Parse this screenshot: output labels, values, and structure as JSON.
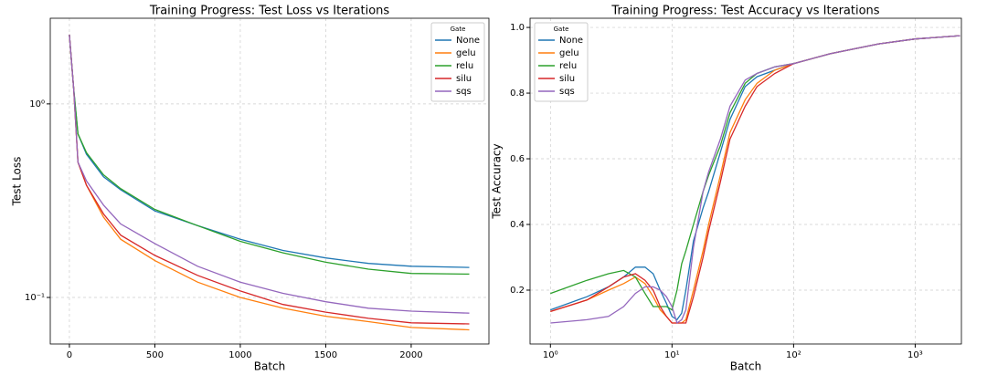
{
  "chart_data": [
    {
      "type": "line",
      "title": "Training Progress: Test Loss vs Iterations",
      "xlabel": "Batch",
      "ylabel": "Test Loss",
      "x": [
        0,
        25,
        50,
        100,
        200,
        300,
        500,
        750,
        1000,
        1250,
        1500,
        1750,
        2000,
        2340
      ],
      "series": [
        {
          "name": "None",
          "color": "#1f77b4",
          "values": [
            2.28,
            1.2,
            0.7,
            0.55,
            0.42,
            0.36,
            0.28,
            0.235,
            0.2,
            0.175,
            0.16,
            0.15,
            0.145,
            0.143
          ]
        },
        {
          "name": "gelu",
          "color": "#ff7f0e",
          "values": [
            2.28,
            1.2,
            0.5,
            0.38,
            0.26,
            0.2,
            0.155,
            0.12,
            0.1,
            0.088,
            0.08,
            0.075,
            0.07,
            0.068
          ]
        },
        {
          "name": "relu",
          "color": "#2ca02c",
          "values": [
            2.28,
            1.2,
            0.7,
            0.56,
            0.43,
            0.365,
            0.285,
            0.235,
            0.195,
            0.17,
            0.152,
            0.14,
            0.133,
            0.132
          ]
        },
        {
          "name": "silu",
          "color": "#d62728",
          "values": [
            2.28,
            1.2,
            0.5,
            0.38,
            0.27,
            0.21,
            0.165,
            0.13,
            0.108,
            0.092,
            0.084,
            0.078,
            0.074,
            0.073
          ]
        },
        {
          "name": "sqs",
          "color": "#9467bd",
          "values": [
            2.28,
            1.2,
            0.5,
            0.4,
            0.3,
            0.24,
            0.19,
            0.145,
            0.12,
            0.105,
            0.095,
            0.088,
            0.085,
            0.083
          ]
        }
      ],
      "xlim": [
        -112,
        2455
      ],
      "xticks": [
        0,
        500,
        1000,
        1500,
        2000
      ],
      "ylim": [
        0.0575,
        2.77
      ],
      "ylog": true,
      "yticks": [
        {
          "value": 0.1,
          "label": "10⁻¹"
        },
        {
          "value": 1,
          "label": "10⁰"
        }
      ],
      "grid": true,
      "legend_title": "Gate",
      "legend": "upper right"
    },
    {
      "type": "line",
      "title": "Training Progress: Test Accuracy vs Iterations",
      "xlabel": "Batch",
      "ylabel": "Test Accuracy",
      "x": [
        1,
        2,
        3,
        4,
        5,
        6,
        7,
        8,
        9,
        10,
        11,
        12,
        13,
        15,
        18,
        20,
        25,
        30,
        40,
        50,
        70,
        100,
        200,
        500,
        1000,
        2340
      ],
      "series": [
        {
          "name": "None",
          "color": "#1f77b4",
          "values": [
            0.14,
            0.18,
            0.21,
            0.24,
            0.27,
            0.27,
            0.25,
            0.2,
            0.16,
            0.12,
            0.11,
            0.13,
            0.2,
            0.35,
            0.45,
            0.5,
            0.62,
            0.72,
            0.82,
            0.85,
            0.87,
            0.89,
            0.92,
            0.95,
            0.965,
            0.975
          ]
        },
        {
          "name": "gelu",
          "color": "#ff7f0e",
          "values": [
            0.135,
            0.17,
            0.2,
            0.22,
            0.24,
            0.22,
            0.18,
            0.14,
            0.12,
            0.1,
            0.1,
            0.1,
            0.11,
            0.2,
            0.32,
            0.4,
            0.55,
            0.68,
            0.78,
            0.83,
            0.87,
            0.89,
            0.92,
            0.95,
            0.965,
            0.975
          ]
        },
        {
          "name": "relu",
          "color": "#2ca02c",
          "values": [
            0.19,
            0.23,
            0.25,
            0.26,
            0.24,
            0.19,
            0.15,
            0.15,
            0.15,
            0.14,
            0.2,
            0.28,
            0.32,
            0.4,
            0.5,
            0.55,
            0.64,
            0.74,
            0.83,
            0.86,
            0.88,
            0.89,
            0.92,
            0.95,
            0.965,
            0.975
          ]
        },
        {
          "name": "silu",
          "color": "#d62728",
          "values": [
            0.135,
            0.17,
            0.21,
            0.24,
            0.25,
            0.23,
            0.2,
            0.15,
            0.12,
            0.1,
            0.1,
            0.1,
            0.1,
            0.18,
            0.3,
            0.38,
            0.53,
            0.66,
            0.76,
            0.82,
            0.86,
            0.89,
            0.92,
            0.95,
            0.965,
            0.975
          ]
        },
        {
          "name": "sqs",
          "color": "#9467bd",
          "values": [
            0.1,
            0.11,
            0.12,
            0.15,
            0.19,
            0.21,
            0.21,
            0.2,
            0.18,
            0.15,
            0.1,
            0.11,
            0.14,
            0.33,
            0.5,
            0.56,
            0.66,
            0.76,
            0.84,
            0.86,
            0.88,
            0.89,
            0.92,
            0.95,
            0.965,
            0.975
          ]
        }
      ],
      "xlim": [
        0.68,
        2400
      ],
      "xlog": true,
      "xticks": [
        {
          "value": 1,
          "label": "10⁰"
        },
        {
          "value": 10,
          "label": "10¹"
        },
        {
          "value": 100,
          "label": "10²"
        },
        {
          "value": 1000,
          "label": "10³"
        }
      ],
      "ylim": [
        0.036,
        1.028
      ],
      "yticks": [
        0.2,
        0.4,
        0.6,
        0.8,
        {
          "value": 1,
          "label": "1.0"
        }
      ],
      "grid": true,
      "legend_title": "Gate",
      "legend": "upper left"
    }
  ]
}
